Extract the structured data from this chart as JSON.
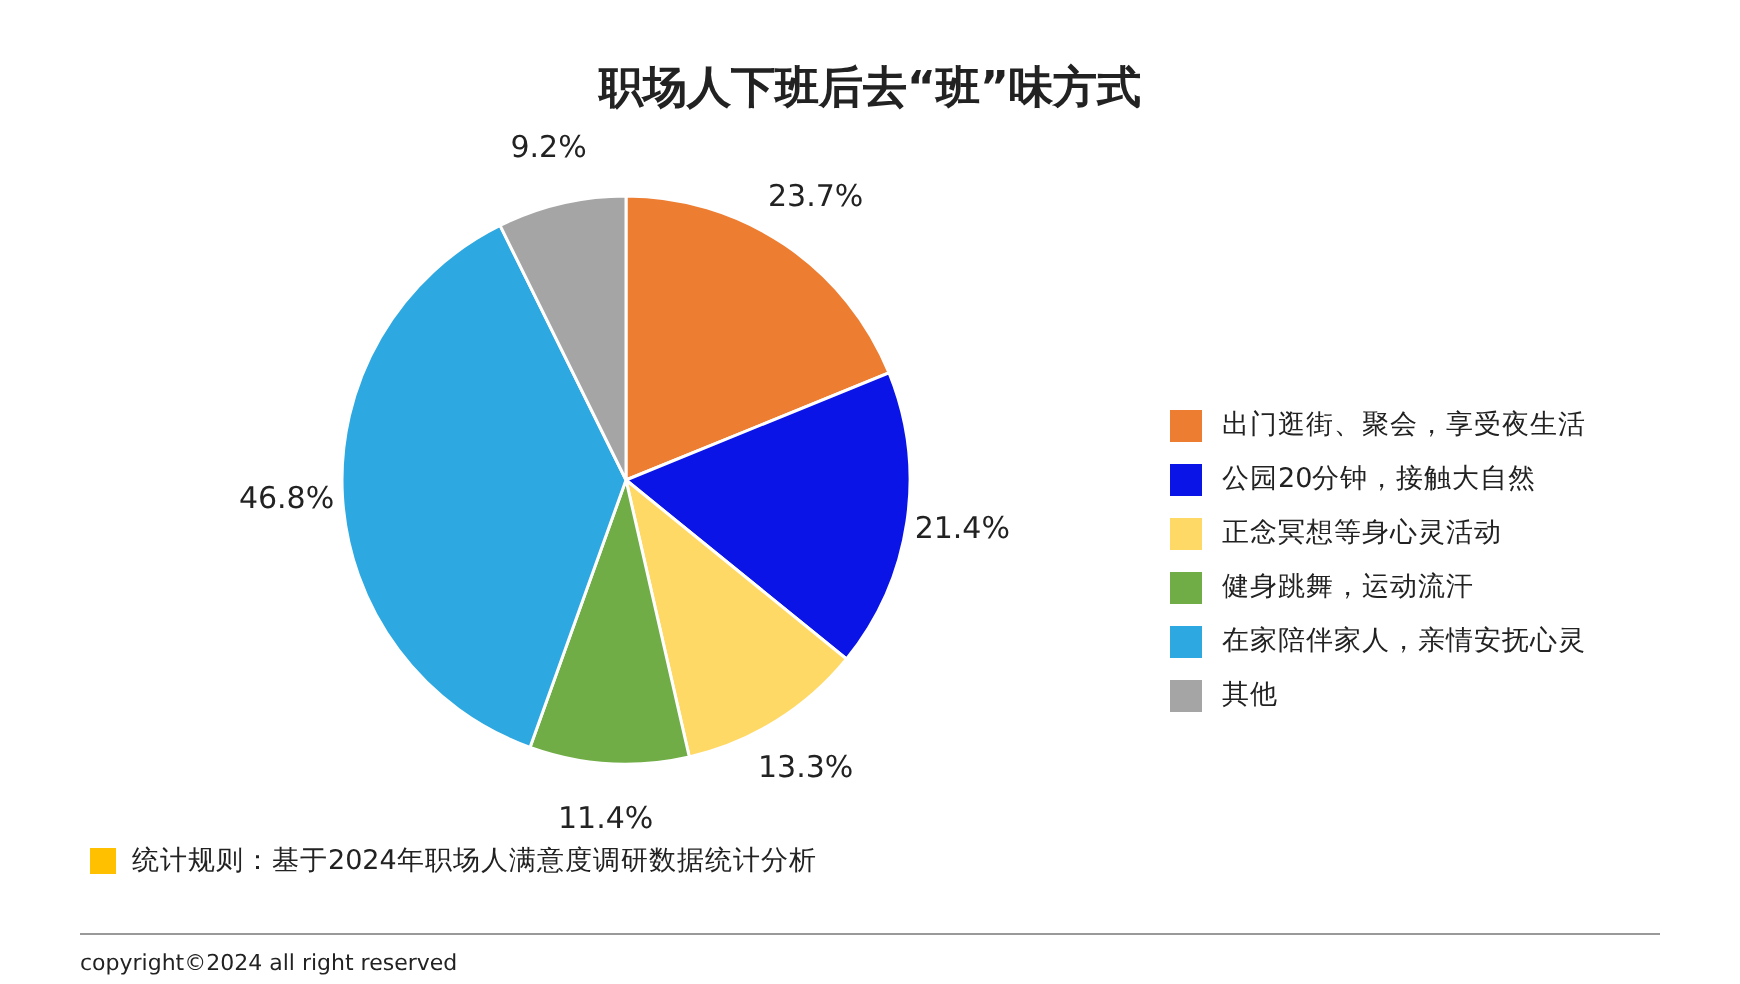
{
  "chart_data": {
    "type": "pie",
    "title": "职场人下班后去“班”味方式",
    "categories": [
      "出门逛街、聚会，享受夜生活",
      "公园20分钟，接触大自然",
      "正念冥想等身心灵活动",
      "健身跳舞，运动流汗",
      "在家陪伴家人，亲情安抚心灵",
      "其他"
    ],
    "values": [
      23.7,
      21.4,
      13.3,
      11.4,
      46.8,
      9.2
    ],
    "colors": [
      "#ed7d31",
      "#0a14e6",
      "#ffd966",
      "#70ad47",
      "#2ea8e0",
      "#a5a5a5"
    ],
    "value_labels": [
      "23.7%",
      "21.4%",
      "13.3%",
      "11.4%",
      "46.8%",
      "9.2%"
    ],
    "legend": "right",
    "annotations": [
      "统计规则：基于2024年职场人满意度调研数据统计分析",
      "copyright©2024 all right reserved"
    ]
  }
}
